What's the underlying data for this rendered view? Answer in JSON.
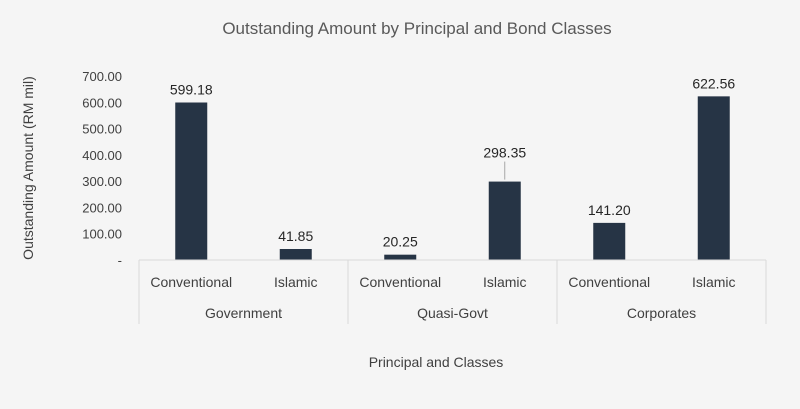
{
  "chart_data": {
    "type": "bar",
    "title": "Outstanding Amount by Principal and Bond Classes",
    "xlabel": "Principal and Classes",
    "ylabel": "Outstanding Amount (RM mil)",
    "ylim": [
      0,
      700
    ],
    "yticks": [
      "-",
      "100.00",
      "200.00",
      "300.00",
      "400.00",
      "500.00",
      "600.00",
      "700.00"
    ],
    "groups": [
      "Government",
      "Quasi-Govt",
      "Corporates"
    ],
    "categories": [
      "Conventional",
      "Islamic",
      "Conventional",
      "Islamic",
      "Conventional",
      "Islamic"
    ],
    "values": [
      599.18,
      41.85,
      20.25,
      298.35,
      141.2,
      622.56
    ],
    "data_labels": [
      "599.18",
      "41.85",
      "20.25",
      "298.35",
      "141.20",
      "622.56"
    ],
    "bar_color": "#263445",
    "grid": false,
    "legend": "none"
  }
}
